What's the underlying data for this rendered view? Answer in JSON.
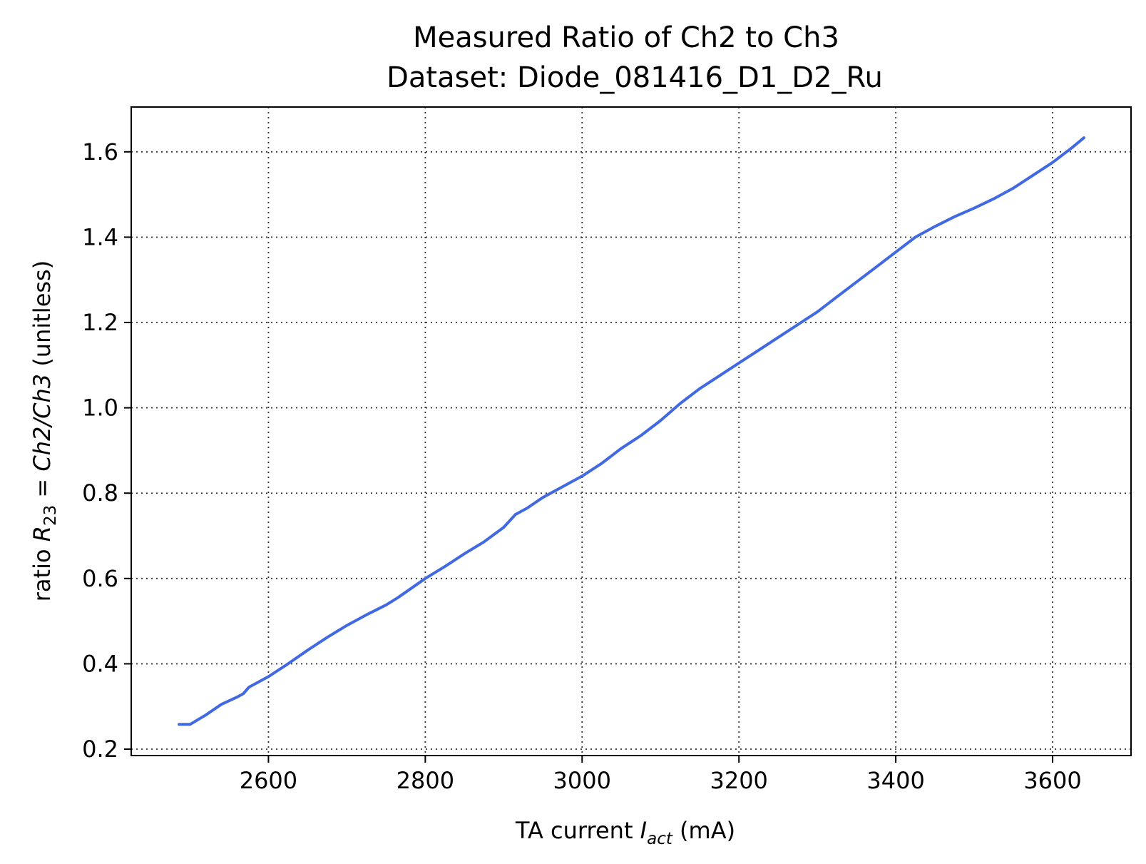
{
  "chart_data": {
    "type": "line",
    "title": "Measured Ratio of Ch2 to Ch3",
    "subtitle": "Dataset: Diode_081416_D1_D2_Ru",
    "xlabel": {
      "prefix": "TA current ",
      "symbol": "I",
      "subscript": "act",
      "suffix": " (mA)"
    },
    "ylabel": {
      "prefix": "ratio ",
      "symbol": "R",
      "subscript": "23",
      "equation": " = Ch2/Ch3",
      "suffix": " (unitless)"
    },
    "xlim": [
      2425,
      3700
    ],
    "ylim": [
      0.185,
      1.705
    ],
    "xticks": [
      2600,
      2800,
      3000,
      3200,
      3400,
      3600
    ],
    "xtick_labels": [
      "2600",
      "2800",
      "3000",
      "3200",
      "3400",
      "3600"
    ],
    "yticks": [
      0.2,
      0.4,
      0.6,
      0.8,
      1.0,
      1.2,
      1.4,
      1.6
    ],
    "ytick_labels": [
      "0.2",
      "0.4",
      "0.6",
      "0.8",
      "1.0",
      "1.2",
      "1.4",
      "1.6"
    ],
    "grid": true,
    "series": [
      {
        "color": "#4169e1",
        "x": [
          2486,
          2500,
          2520,
          2540,
          2560,
          2568,
          2575,
          2600,
          2625,
          2650,
          2675,
          2700,
          2725,
          2750,
          2765,
          2800,
          2825,
          2850,
          2875,
          2900,
          2915,
          2930,
          2950,
          2975,
          3000,
          3025,
          3050,
          3075,
          3100,
          3125,
          3150,
          3175,
          3200,
          3225,
          3250,
          3275,
          3300,
          3325,
          3350,
          3375,
          3400,
          3425,
          3450,
          3475,
          3500,
          3525,
          3550,
          3575,
          3600,
          3625,
          3640
        ],
        "y": [
          0.258,
          0.258,
          0.28,
          0.305,
          0.322,
          0.33,
          0.345,
          0.37,
          0.4,
          0.432,
          0.462,
          0.49,
          0.515,
          0.538,
          0.555,
          0.6,
          0.628,
          0.658,
          0.686,
          0.72,
          0.75,
          0.765,
          0.79,
          0.815,
          0.84,
          0.87,
          0.905,
          0.935,
          0.97,
          1.01,
          1.045,
          1.075,
          1.105,
          1.135,
          1.165,
          1.195,
          1.225,
          1.26,
          1.295,
          1.33,
          1.365,
          1.4,
          1.425,
          1.448,
          1.468,
          1.49,
          1.515,
          1.545,
          1.575,
          1.61,
          1.633
        ]
      }
    ]
  }
}
